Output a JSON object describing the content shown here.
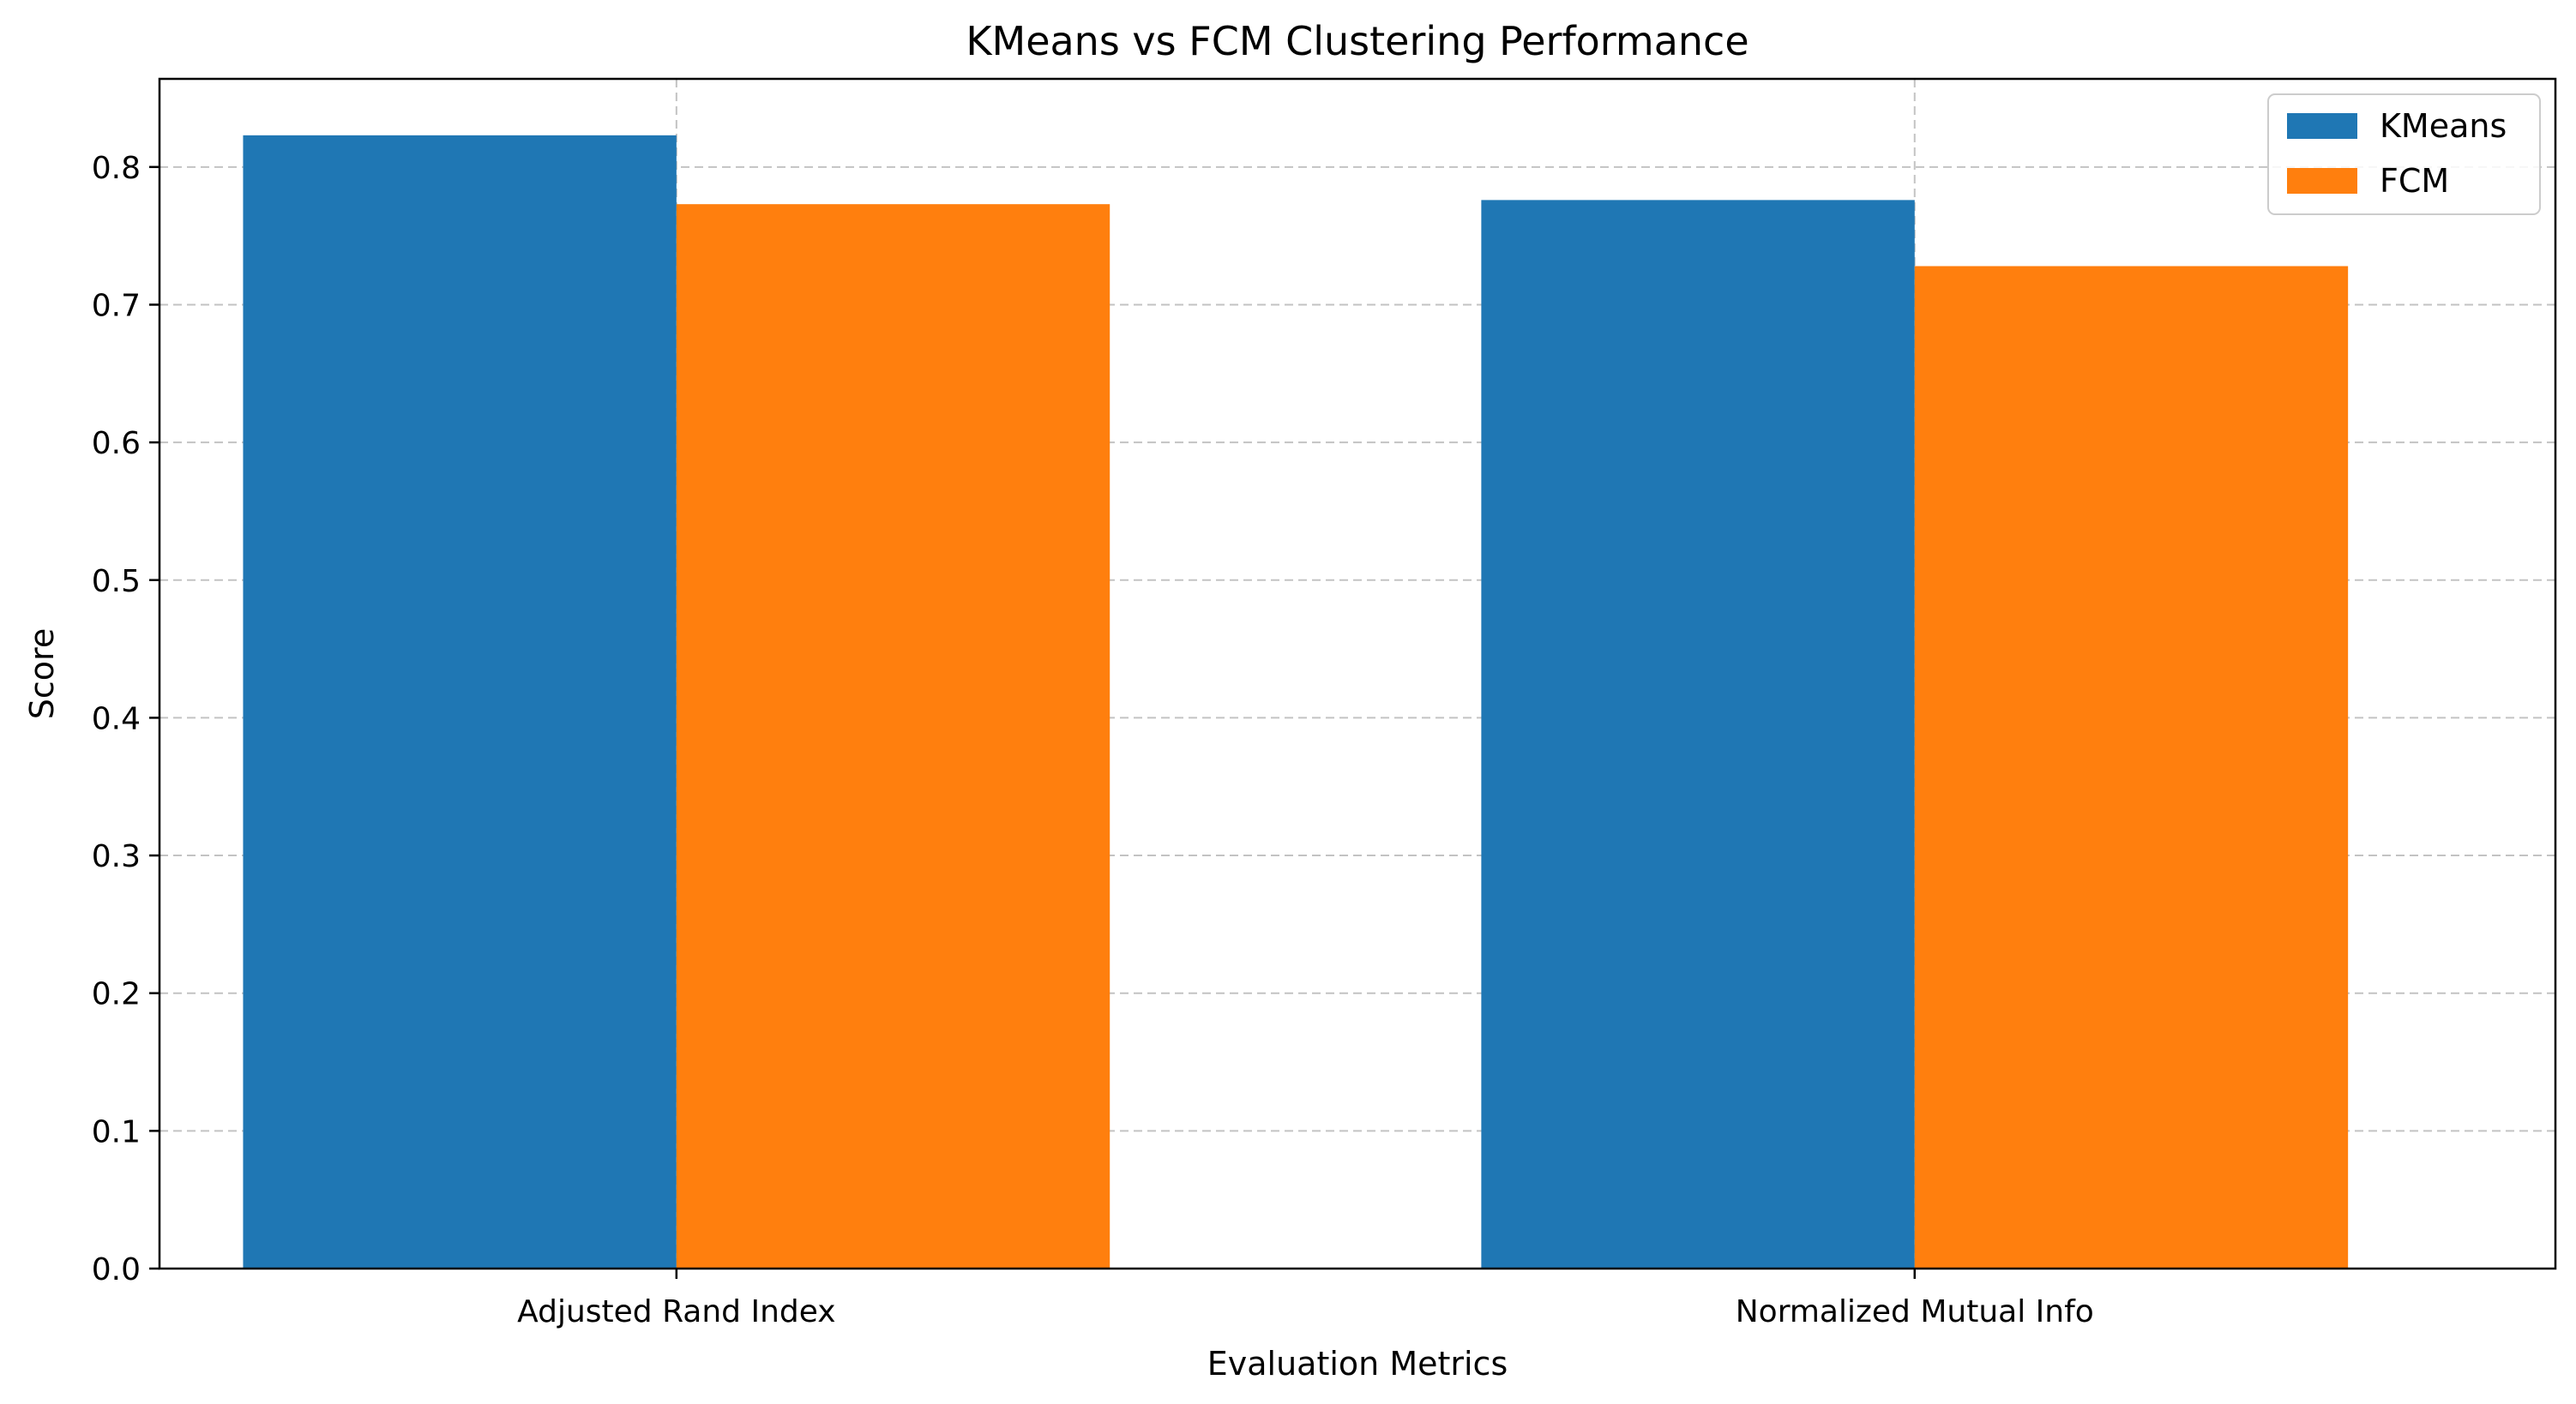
{
  "chart_data": {
    "type": "bar",
    "title": "KMeans vs FCM Clustering Performance",
    "xlabel": "Evaluation Metrics",
    "ylabel": "Score",
    "categories": [
      "Adjusted Rand Index",
      "Normalized Mutual Info"
    ],
    "series": [
      {
        "name": "KMeans",
        "values": [
          0.823,
          0.776
        ],
        "color": "#1f77b4"
      },
      {
        "name": "FCM",
        "values": [
          0.773,
          0.728
        ],
        "color": "#ff7f0e"
      }
    ],
    "ylim": [
      0,
      0.864
    ],
    "yticks": [
      "0.0",
      "0.1",
      "0.2",
      "0.3",
      "0.4",
      "0.5",
      "0.6",
      "0.7",
      "0.8"
    ],
    "grid": true,
    "legend_position": "top-right"
  }
}
